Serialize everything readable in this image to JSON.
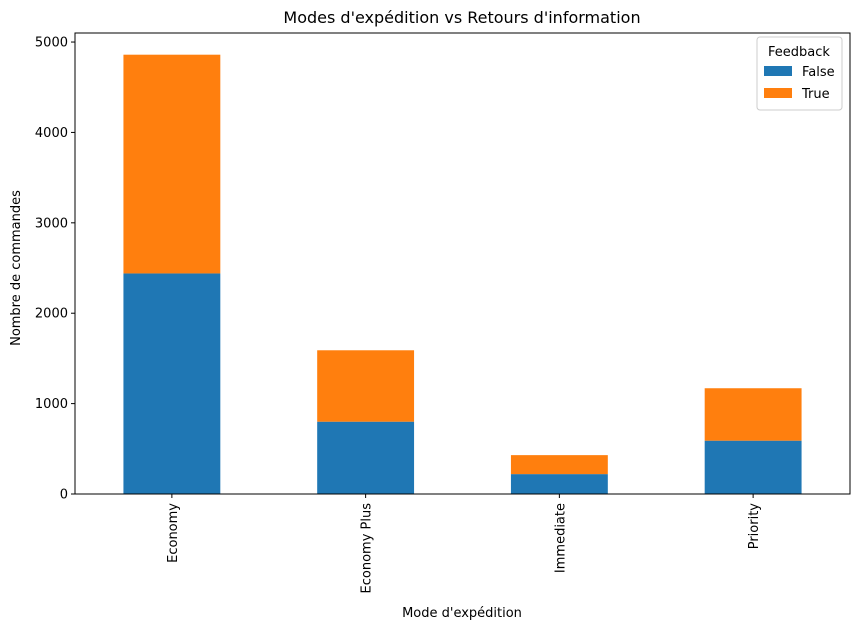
{
  "chart_data": {
    "type": "bar",
    "stacked": true,
    "title": "Modes d'expédition vs Retours d'information",
    "xlabel": "Mode d'expédition",
    "ylabel": "Nombre de commandes",
    "categories": [
      "Economy",
      "Economy Plus",
      "Immediate",
      "Priority"
    ],
    "series": [
      {
        "name": "False",
        "values": [
          2440,
          800,
          220,
          590
        ],
        "color": "#1f77b4"
      },
      {
        "name": "True",
        "values": [
          2420,
          790,
          210,
          580
        ],
        "color": "#ff7f0e"
      }
    ],
    "ylim": [
      0,
      5100
    ],
    "yticks": [
      0,
      1000,
      2000,
      3000,
      4000,
      5000
    ],
    "grid": false,
    "legend": {
      "title": "Feedback",
      "placement": "top-right"
    }
  }
}
